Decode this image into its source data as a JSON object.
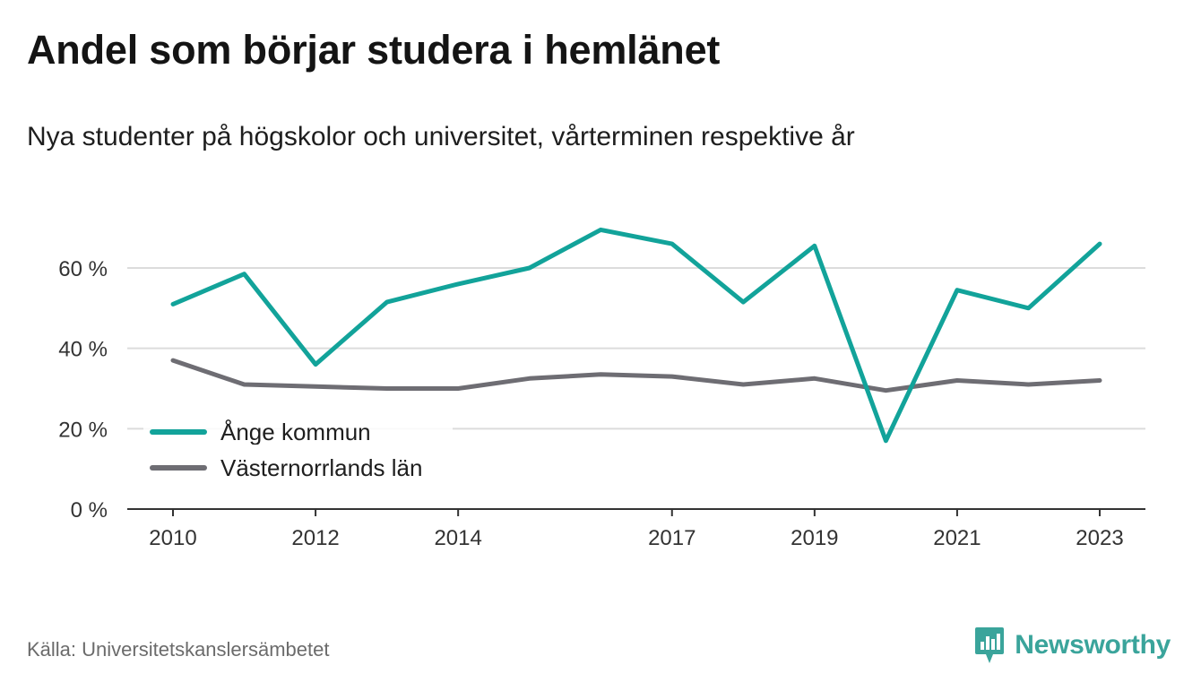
{
  "title": "Andel som börjar studera i hemlänet",
  "subtitle": "Nya studenter på högskolor och universitet, vårterminen respektive år",
  "source": "Källa: Universitetskanslersämbetet",
  "brand": {
    "name": "Newsworthy",
    "icon": "newsworthy-logo-icon",
    "color": "#3aa49b"
  },
  "chart_data": {
    "type": "line",
    "x": [
      2010,
      2011,
      2012,
      2013,
      2014,
      2015,
      2016,
      2017,
      2018,
      2019,
      2020,
      2021,
      2022,
      2023
    ],
    "xticks": [
      2010,
      2012,
      2014,
      2017,
      2019,
      2021,
      2023
    ],
    "xtick_labels": [
      "2010",
      "2012",
      "2014",
      "2017",
      "2019",
      "2021",
      "2023"
    ],
    "ylim": [
      0,
      75
    ],
    "yticks": [
      0,
      20,
      40,
      60
    ],
    "ytick_labels": [
      "0 %",
      "20 %",
      "40 %",
      "60 %"
    ],
    "grid": true,
    "legend_position": "bottom-left",
    "series": [
      {
        "name": "Ånge kommun",
        "color": "#12a39a",
        "values": [
          51,
          58.5,
          36,
          51.5,
          56,
          60,
          69.5,
          66,
          51.5,
          65.5,
          17,
          54.5,
          50,
          66
        ]
      },
      {
        "name": "Västernorrlands län",
        "color": "#6e6d73",
        "values": [
          37,
          31,
          30.5,
          30,
          30,
          32.5,
          33.5,
          33,
          31,
          32.5,
          29.5,
          32,
          31,
          32
        ]
      }
    ]
  }
}
